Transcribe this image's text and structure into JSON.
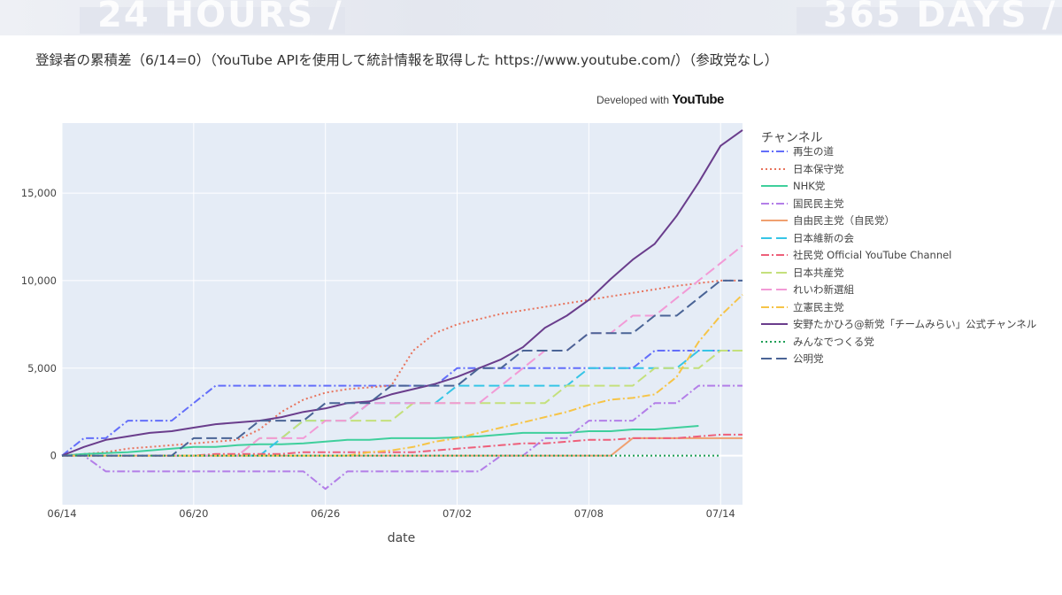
{
  "banner": {
    "text_left": "24 HOURS /",
    "text_right": "365 DAYS /"
  },
  "title": "登録者の累積差（6/14=0）（YouTube APIを使用して統計情報を取得した https://www.youtube.com/）（参政党なし）",
  "developed_with": {
    "prefix": "Developed with",
    "brand": "YouTube"
  },
  "colors": {
    "plot_bg": "#e5ecf6",
    "grid": "#ffffff"
  },
  "chart_data": {
    "type": "line",
    "xlabel": "date",
    "ylabel": "",
    "legend_title": "チャンネル",
    "legend_position": "right",
    "x": [
      "06/14",
      "06/15",
      "06/16",
      "06/17",
      "06/18",
      "06/19",
      "06/20",
      "06/21",
      "06/22",
      "06/23",
      "06/24",
      "06/25",
      "06/26",
      "06/27",
      "06/28",
      "06/29",
      "06/30",
      "07/01",
      "07/02",
      "07/03",
      "07/04",
      "07/05",
      "07/06",
      "07/07",
      "07/08",
      "07/09",
      "07/10",
      "07/11",
      "07/12",
      "07/13",
      "07/14",
      "07/15"
    ],
    "x_ticks": [
      "06/14",
      "06/20",
      "06/26",
      "07/02",
      "07/08",
      "07/14"
    ],
    "y_ticks": [
      0,
      5000,
      10000,
      15000
    ],
    "y_tick_labels": [
      "0",
      "5,000",
      "10,000",
      "15,000"
    ],
    "ylim": [
      -2800,
      19000
    ],
    "series": [
      {
        "name": "再生の道",
        "color": "#636efa",
        "dash": "dashdot",
        "values": [
          0,
          1000,
          1000,
          2000,
          2000,
          2000,
          3000,
          4000,
          4000,
          4000,
          4000,
          4000,
          4000,
          4000,
          4000,
          4000,
          4000,
          4000,
          5000,
          5000,
          5000,
          5000,
          5000,
          5000,
          5000,
          5000,
          5000,
          6000,
          6000,
          6000,
          6000,
          6000
        ]
      },
      {
        "name": "日本保守党",
        "color": "#e8735c",
        "dash": "dot",
        "values": [
          0,
          100,
          200,
          400,
          500,
          600,
          700,
          800,
          900,
          1500,
          2500,
          3200,
          3600,
          3800,
          3900,
          4000,
          6000,
          7000,
          7500,
          7800,
          8100,
          8300,
          8500,
          8700,
          8900,
          9100,
          9300,
          9500,
          9700,
          9850,
          10000,
          10000
        ]
      },
      {
        "name": "NHK党",
        "color": "#3fcf9c",
        "dash": "solid",
        "values": [
          0,
          100,
          150,
          200,
          300,
          400,
          500,
          500,
          600,
          650,
          650,
          700,
          800,
          900,
          900,
          1000,
          1000,
          1000,
          1050,
          1100,
          1200,
          1300,
          1300,
          1300,
          1400,
          1400,
          1500,
          1500,
          1600,
          1700,
          null,
          null
        ]
      },
      {
        "name": "国民民主党",
        "color": "#b37ee8",
        "dash": "dashdot",
        "values": [
          0,
          0,
          -900,
          -900,
          -900,
          -900,
          -900,
          -900,
          -900,
          -900,
          -900,
          -900,
          -1900,
          -900,
          -900,
          -900,
          -900,
          -900,
          -900,
          -900,
          0,
          0,
          1000,
          1000,
          2000,
          2000,
          2000,
          3000,
          3000,
          4000,
          4000,
          4000
        ]
      },
      {
        "name": "自由民主党（自民党）",
        "color": "#f0a070",
        "dash": "solid",
        "values": [
          0,
          0,
          0,
          0,
          0,
          0,
          0,
          0,
          0,
          0,
          0,
          0,
          0,
          0,
          0,
          0,
          0,
          0,
          0,
          0,
          0,
          0,
          0,
          0,
          0,
          0,
          1000,
          1000,
          1000,
          1000,
          1000,
          1000
        ]
      },
      {
        "name": "日本維新の会",
        "color": "#36c5e6",
        "dash": "longdash",
        "values": [
          0,
          0,
          0,
          0,
          0,
          0,
          0,
          0,
          0,
          0,
          1000,
          2000,
          2000,
          2000,
          3000,
          3000,
          3000,
          3000,
          4000,
          4000,
          4000,
          4000,
          4000,
          4000,
          5000,
          5000,
          5000,
          5000,
          5000,
          6000,
          6000,
          6000
        ]
      },
      {
        "name": "社民党 Official YouTube Channel",
        "color": "#ee5f7a",
        "dash": "dashdot",
        "values": [
          0,
          0,
          0,
          0,
          0,
          0,
          0,
          100,
          100,
          100,
          100,
          200,
          200,
          200,
          200,
          200,
          200,
          300,
          400,
          500,
          600,
          700,
          700,
          800,
          900,
          900,
          1000,
          1000,
          1000,
          1100,
          1200,
          1200
        ]
      },
      {
        "name": "日本共産党",
        "color": "#c4e07c",
        "dash": "longdash",
        "values": [
          0,
          0,
          0,
          0,
          0,
          0,
          0,
          0,
          0,
          1000,
          1000,
          2000,
          2000,
          2000,
          2000,
          2000,
          3000,
          3000,
          3000,
          3000,
          3000,
          3000,
          3000,
          4000,
          4000,
          4000,
          4000,
          5000,
          5000,
          5000,
          6000,
          6000
        ]
      },
      {
        "name": "れいわ新選組",
        "color": "#f29ad6",
        "dash": "longdash",
        "values": [
          0,
          0,
          0,
          0,
          0,
          0,
          0,
          0,
          0,
          1000,
          1000,
          1000,
          2000,
          2000,
          3000,
          3000,
          3000,
          3000,
          3000,
          3000,
          4000,
          5000,
          6000,
          6000,
          7000,
          7000,
          8000,
          8000,
          9000,
          10000,
          11000,
          12000
        ]
      },
      {
        "name": "立憲民主党",
        "color": "#f6c447",
        "dash": "dashdot",
        "values": [
          0,
          0,
          0,
          0,
          0,
          0,
          0,
          0,
          0,
          0,
          0,
          0,
          0,
          0,
          200,
          300,
          500,
          800,
          1000,
          1300,
          1600,
          1900,
          2200,
          2500,
          2900,
          3200,
          3300,
          3500,
          4500,
          6500,
          8000,
          9200
        ]
      },
      {
        "name": "安野たかひろ@新党「チームみらい」公式チャンネル",
        "color": "#6a3d8c",
        "dash": "solid",
        "values": [
          0,
          500,
          900,
          1100,
          1300,
          1400,
          1600,
          1800,
          1900,
          2000,
          2200,
          2500,
          2700,
          3000,
          3100,
          3500,
          3800,
          4100,
          4500,
          5000,
          5500,
          6200,
          7300,
          8000,
          8900,
          10100,
          11200,
          12100,
          13700,
          15600,
          17700,
          18600
        ]
      },
      {
        "name": "みんなでつくる党",
        "color": "#1e9e56",
        "dash": "dot",
        "values": [
          0,
          0,
          0,
          0,
          0,
          0,
          0,
          0,
          0,
          0,
          0,
          0,
          0,
          0,
          0,
          0,
          0,
          0,
          0,
          0,
          0,
          0,
          0,
          0,
          0,
          0,
          0,
          0,
          0,
          0,
          0,
          null
        ]
      },
      {
        "name": "公明党",
        "color": "#4a6496",
        "dash": "longdash",
        "values": [
          0,
          0,
          0,
          0,
          0,
          0,
          1000,
          1000,
          1000,
          2000,
          2000,
          2000,
          3000,
          3000,
          3000,
          4000,
          4000,
          4000,
          4000,
          5000,
          5000,
          6000,
          6000,
          6000,
          7000,
          7000,
          7000,
          8000,
          8000,
          9000,
          10000,
          10000
        ]
      }
    ]
  }
}
